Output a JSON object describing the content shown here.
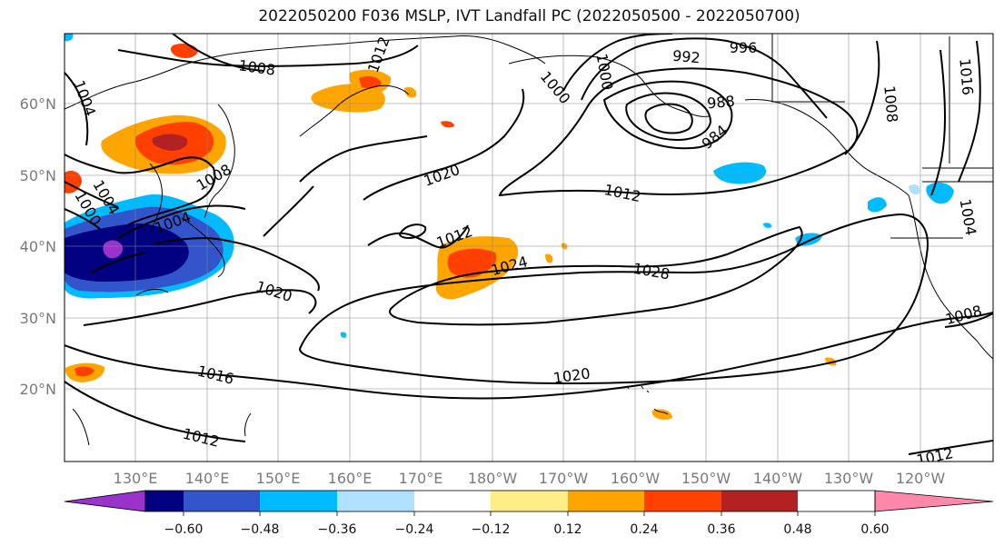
{
  "title": "2022050200 F036 MSLP, IVT Landfall PC (2022050500 - 2022050700)",
  "map": {
    "lon_labels": [
      "130°E",
      "140°E",
      "150°E",
      "160°E",
      "170°E",
      "180°W",
      "170°W",
      "160°W",
      "150°W",
      "140°W",
      "130°W",
      "120°W"
    ],
    "lat_labels": [
      "60°N",
      "50°N",
      "40°N",
      "30°N",
      "20°N"
    ]
  },
  "colorbar": {
    "colors": [
      "#9933cc",
      "#000080",
      "#3355cc",
      "#00bbff",
      "#b0e0ff",
      "#ffffff",
      "#ffee88",
      "#ffa500",
      "#ff4000",
      "#b22222",
      "#ff88aa"
    ],
    "tick_labels": [
      "−0.60",
      "−0.48",
      "−0.36",
      "−0.24",
      "−0.12",
      "0.12",
      "0.24",
      "0.36",
      "0.48",
      "0.60"
    ]
  },
  "mslp_contour_labels": [
    "1008",
    "1004",
    "1012",
    "1000",
    "992",
    "996",
    "1008",
    "1016",
    "1000",
    "1004",
    "1004",
    "1008",
    "1000",
    "988",
    "984",
    "1020",
    "1012",
    "1012",
    "1020",
    "1024",
    "1028",
    "1004",
    "1008",
    "1016",
    "1020",
    "1012",
    "1012"
  ]
}
